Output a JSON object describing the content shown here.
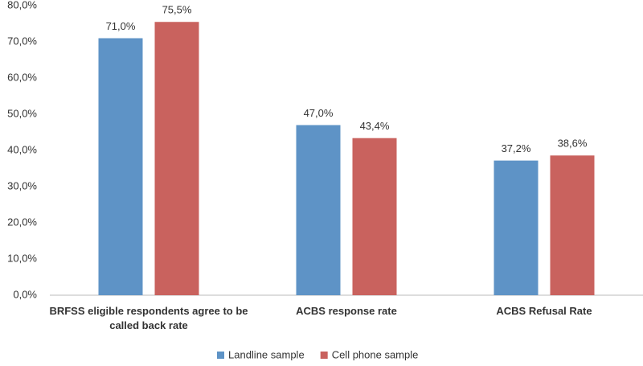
{
  "chart_data": {
    "type": "bar",
    "categories": [
      "BRFSS eligible respondents agree to be called back rate",
      "ACBS response rate",
      "ACBS Refusal Rate"
    ],
    "series": [
      {
        "name": "Landline sample",
        "color": "#5e93c6",
        "values": [
          71.0,
          47.0,
          37.2
        ],
        "value_labels": [
          "71,0%",
          "47,0%",
          "37,2%"
        ]
      },
      {
        "name": "Cell phone sample",
        "color": "#c9625e",
        "values": [
          75.5,
          43.4,
          38.6
        ],
        "value_labels": [
          "75,5%",
          "43,4%",
          "38,6%"
        ]
      }
    ],
    "ylim": [
      0,
      80
    ],
    "yticks": [
      {
        "value": 0,
        "label": "0,0%"
      },
      {
        "value": 10,
        "label": "10,0%"
      },
      {
        "value": 20,
        "label": "20,0%"
      },
      {
        "value": 30,
        "label": "30,0%"
      },
      {
        "value": 40,
        "label": "40,0%"
      },
      {
        "value": 50,
        "label": "50,0%"
      },
      {
        "value": 60,
        "label": "60,0%"
      },
      {
        "value": 70,
        "label": "70,0%"
      },
      {
        "value": 80,
        "label": "80,0%"
      }
    ],
    "grid": false,
    "legend": "bottom"
  }
}
